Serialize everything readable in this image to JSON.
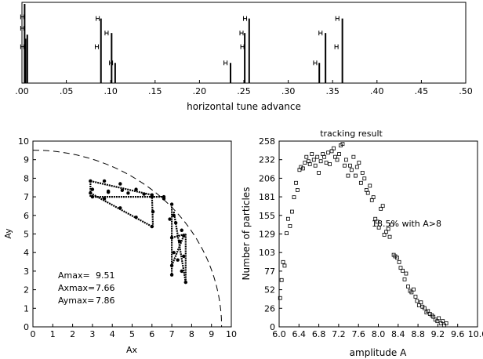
{
  "chart_data": [
    {
      "type": "bar",
      "xlabel": "horizontal tune advance",
      "xlim": [
        0,
        0.5
      ],
      "x_ticks": [
        ".00",
        ".05",
        ".10",
        ".15",
        ".20",
        ".25",
        ".30",
        ".35",
        ".40",
        ".45",
        ".50"
      ],
      "lines": [
        {
          "x": 0.003,
          "height": 0.98
        },
        {
          "x": 0.004,
          "height": 0.55
        },
        {
          "x": 0.006,
          "height": 0.6
        },
        {
          "x": 0.089,
          "height": 0.8
        },
        {
          "x": 0.101,
          "height": 0.62
        },
        {
          "x": 0.105,
          "height": 0.25
        },
        {
          "x": 0.235,
          "height": 0.25
        },
        {
          "x": 0.251,
          "height": 0.62
        },
        {
          "x": 0.256,
          "height": 0.8
        },
        {
          "x": 0.335,
          "height": 0.25
        },
        {
          "x": 0.342,
          "height": 0.62
        },
        {
          "x": 0.361,
          "height": 0.8
        }
      ],
      "label_marks": [
        {
          "x": 0.003,
          "height": 0.82
        },
        {
          "x": 0.003,
          "height": 0.68
        },
        {
          "x": 0.003,
          "height": 0.45
        },
        {
          "x": 0.088,
          "height": 0.8
        },
        {
          "x": 0.087,
          "height": 0.45
        },
        {
          "x": 0.098,
          "height": 0.62
        },
        {
          "x": 0.103,
          "height": 0.25
        },
        {
          "x": 0.232,
          "height": 0.25
        },
        {
          "x": 0.25,
          "height": 0.62
        },
        {
          "x": 0.254,
          "height": 0.8
        },
        {
          "x": 0.251,
          "height": 0.45
        },
        {
          "x": 0.333,
          "height": 0.25
        },
        {
          "x": 0.339,
          "height": 0.62
        },
        {
          "x": 0.358,
          "height": 0.8
        },
        {
          "x": 0.357,
          "height": 0.45
        }
      ]
    },
    {
      "type": "scatter",
      "xlabel": "Ax",
      "ylabel": "Ay",
      "xlim": [
        0,
        10
      ],
      "ylim": [
        0,
        10
      ],
      "x_ticks": [
        "0",
        "1",
        "2",
        "3",
        "4",
        "5",
        "6",
        "7",
        "8",
        "9",
        "10"
      ],
      "y_ticks": [
        "0",
        "1",
        "2",
        "3",
        "4",
        "5",
        "6",
        "7",
        "8",
        "9",
        "10"
      ],
      "boundary_radius": 9.51,
      "trace": [
        [
          2.9,
          7.85
        ],
        [
          3.6,
          7.85
        ],
        [
          4.4,
          7.7
        ],
        [
          5.2,
          7.4
        ],
        [
          6.0,
          7.1
        ],
        [
          6.6,
          7.0
        ],
        [
          2.9,
          7.2
        ],
        [
          3.6,
          6.9
        ],
        [
          4.4,
          6.4
        ],
        [
          5.2,
          5.9
        ],
        [
          6.0,
          5.4
        ],
        [
          3.0,
          7.4
        ],
        [
          3.8,
          7.3
        ],
        [
          4.8,
          7.2
        ],
        [
          5.6,
          7.15
        ],
        [
          3.0,
          7.0
        ],
        [
          3.8,
          7.25
        ],
        [
          4.5,
          7.35
        ],
        [
          6.0,
          7.0
        ],
        [
          6.05,
          6.2
        ],
        [
          7.0,
          6.6
        ],
        [
          7.1,
          6.0
        ],
        [
          7.2,
          5.6
        ],
        [
          7.5,
          5.2
        ],
        [
          7.6,
          4.9
        ],
        [
          7.0,
          4.8
        ],
        [
          7.1,
          4.0
        ],
        [
          7.0,
          3.3
        ],
        [
          7.0,
          2.8
        ],
        [
          7.6,
          3.8
        ],
        [
          7.7,
          2.4
        ],
        [
          7.4,
          4.6
        ],
        [
          7.3,
          3.6
        ],
        [
          7.5,
          3.0
        ],
        [
          6.9,
          5.8
        ],
        [
          6.6,
          6.9
        ]
      ],
      "stats": [
        {
          "label": "Amax=",
          "value": "9.51"
        },
        {
          "label": "Axmax=",
          "value": "7.66"
        },
        {
          "label": "Aymax=",
          "value": "7.86"
        }
      ]
    },
    {
      "type": "scatter",
      "title": "tracking result",
      "xlabel": "amplitude A",
      "ylabel": "Number of particles",
      "xlim": [
        6.0,
        10.0
      ],
      "ylim": [
        0,
        258
      ],
      "x_ticks": [
        "6.0",
        "6.4",
        "6.8",
        "7.2",
        "7.6",
        "8.0",
        "8.4",
        "8.8",
        "9.2",
        "9.6",
        "10.0"
      ],
      "y_ticks": [
        "0",
        "26",
        "52",
        "77",
        "103",
        "129",
        "155",
        "181",
        "206",
        "232",
        "258"
      ],
      "annotation": "18.5% with A>8",
      "points": [
        [
          6.02,
          40
        ],
        [
          6.05,
          65
        ],
        [
          6.08,
          90
        ],
        [
          6.11,
          85
        ],
        [
          6.15,
          130
        ],
        [
          6.18,
          150
        ],
        [
          6.22,
          140
        ],
        [
          6.26,
          160
        ],
        [
          6.3,
          180
        ],
        [
          6.34,
          200
        ],
        [
          6.37,
          190
        ],
        [
          6.41,
          218
        ],
        [
          6.44,
          222
        ],
        [
          6.48,
          220
        ],
        [
          6.52,
          228
        ],
        [
          6.55,
          236
        ],
        [
          6.59,
          230
        ],
        [
          6.62,
          226
        ],
        [
          6.66,
          240
        ],
        [
          6.7,
          232
        ],
        [
          6.73,
          224
        ],
        [
          6.77,
          236
        ],
        [
          6.8,
          214
        ],
        [
          6.84,
          230
        ],
        [
          6.88,
          240
        ],
        [
          6.91,
          236
        ],
        [
          6.95,
          228
        ],
        [
          6.99,
          242
        ],
        [
          7.02,
          226
        ],
        [
          7.06,
          244
        ],
        [
          7.1,
          248
        ],
        [
          7.13,
          236
        ],
        [
          7.17,
          232
        ],
        [
          7.21,
          240
        ],
        [
          7.24,
          252
        ],
        [
          7.28,
          254
        ],
        [
          7.32,
          224
        ],
        [
          7.35,
          232
        ],
        [
          7.39,
          210
        ],
        [
          7.43,
          224
        ],
        [
          7.46,
          218
        ],
        [
          7.5,
          236
        ],
        [
          7.54,
          210
        ],
        [
          7.57,
          222
        ],
        [
          7.61,
          228
        ],
        [
          7.65,
          200
        ],
        [
          7.68,
          214
        ],
        [
          7.72,
          206
        ],
        [
          7.76,
          190
        ],
        [
          7.79,
          186
        ],
        [
          7.83,
          196
        ],
        [
          7.87,
          176
        ],
        [
          7.9,
          180
        ],
        [
          7.94,
          150
        ],
        [
          7.98,
          146
        ],
        [
          8.01,
          138
        ],
        [
          8.05,
          164
        ],
        [
          8.09,
          168
        ],
        [
          8.12,
          128
        ],
        [
          8.16,
          132
        ],
        [
          8.2,
          136
        ],
        [
          8.23,
          125
        ],
        [
          8.27,
          142
        ],
        [
          8.31,
          100
        ],
        [
          8.34,
          98
        ],
        [
          8.38,
          96
        ],
        [
          8.42,
          90
        ],
        [
          8.45,
          82
        ],
        [
          8.49,
          78
        ],
        [
          8.53,
          66
        ],
        [
          8.56,
          74
        ],
        [
          8.6,
          56
        ],
        [
          8.64,
          50
        ],
        [
          8.67,
          48
        ],
        [
          8.71,
          52
        ],
        [
          8.75,
          42
        ],
        [
          8.78,
          36
        ],
        [
          8.82,
          30
        ],
        [
          8.86,
          34
        ],
        [
          8.89,
          28
        ],
        [
          8.93,
          26
        ],
        [
          8.97,
          20
        ],
        [
          9.0,
          22
        ],
        [
          9.04,
          18
        ],
        [
          9.08,
          16
        ],
        [
          9.11,
          14
        ],
        [
          9.15,
          10
        ],
        [
          9.19,
          8
        ],
        [
          9.22,
          12
        ],
        [
          9.26,
          5
        ],
        [
          9.3,
          8
        ],
        [
          9.33,
          2
        ],
        [
          9.37,
          5
        ]
      ]
    }
  ]
}
